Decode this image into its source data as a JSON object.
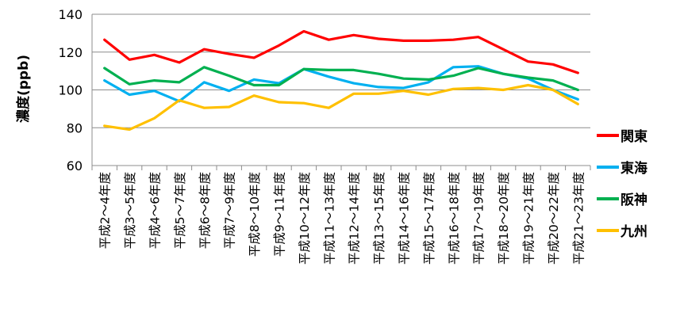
{
  "chart_data": {
    "type": "line",
    "title": "",
    "xlabel": "",
    "ylabel": "濃度(ppb)",
    "ylim": [
      60,
      140
    ],
    "yticks": [
      60,
      80,
      100,
      120,
      140
    ],
    "grid": "horizontal",
    "legend_position": "right",
    "categories": [
      "平成2～4年度",
      "平成3～5年度",
      "平成4～6年度",
      "平成5～7年度",
      "平成6～8年度",
      "平成7～9年度",
      "平成8～10年度",
      "平成9～11年度",
      "平成10～12年度",
      "平成11～13年度",
      "平成12～14年度",
      "平成13～15年度",
      "平成14～16年度",
      "平成15～17年度",
      "平成16～18年度",
      "平成17～19年度",
      "平成18～20年度",
      "平成19～21年度",
      "平成20～22年度",
      "平成21～23年度"
    ],
    "series": [
      {
        "name": "関東",
        "color": "#ff0000",
        "values": [
          126.5,
          116,
          118.5,
          114.5,
          121.5,
          119,
          117,
          123.5,
          131,
          126.5,
          129,
          127,
          126,
          126,
          126.5,
          128,
          121.5,
          115,
          113.5,
          109
        ]
      },
      {
        "name": "東海",
        "color": "#00b0f0",
        "values": [
          105,
          97.5,
          99.5,
          94,
          104,
          99.5,
          105.5,
          103.5,
          111,
          107,
          103.5,
          101.5,
          101,
          104,
          112,
          112.5,
          108.5,
          106,
          100,
          95
        ]
      },
      {
        "name": "阪神",
        "color": "#00b050",
        "values": [
          111.5,
          103,
          105,
          104,
          112,
          107.5,
          102.5,
          102.5,
          111,
          110.5,
          110.5,
          108.5,
          106,
          105.5,
          107.5,
          111.5,
          108.5,
          106.5,
          105,
          100
        ]
      },
      {
        "name": "九州",
        "color": "#ffc000",
        "values": [
          81,
          79,
          85,
          94.5,
          90.5,
          91,
          97,
          93.5,
          93,
          90.5,
          98,
          98,
          99.5,
          97.5,
          100.5,
          101,
          100,
          102.5,
          100,
          92.5
        ]
      }
    ]
  }
}
